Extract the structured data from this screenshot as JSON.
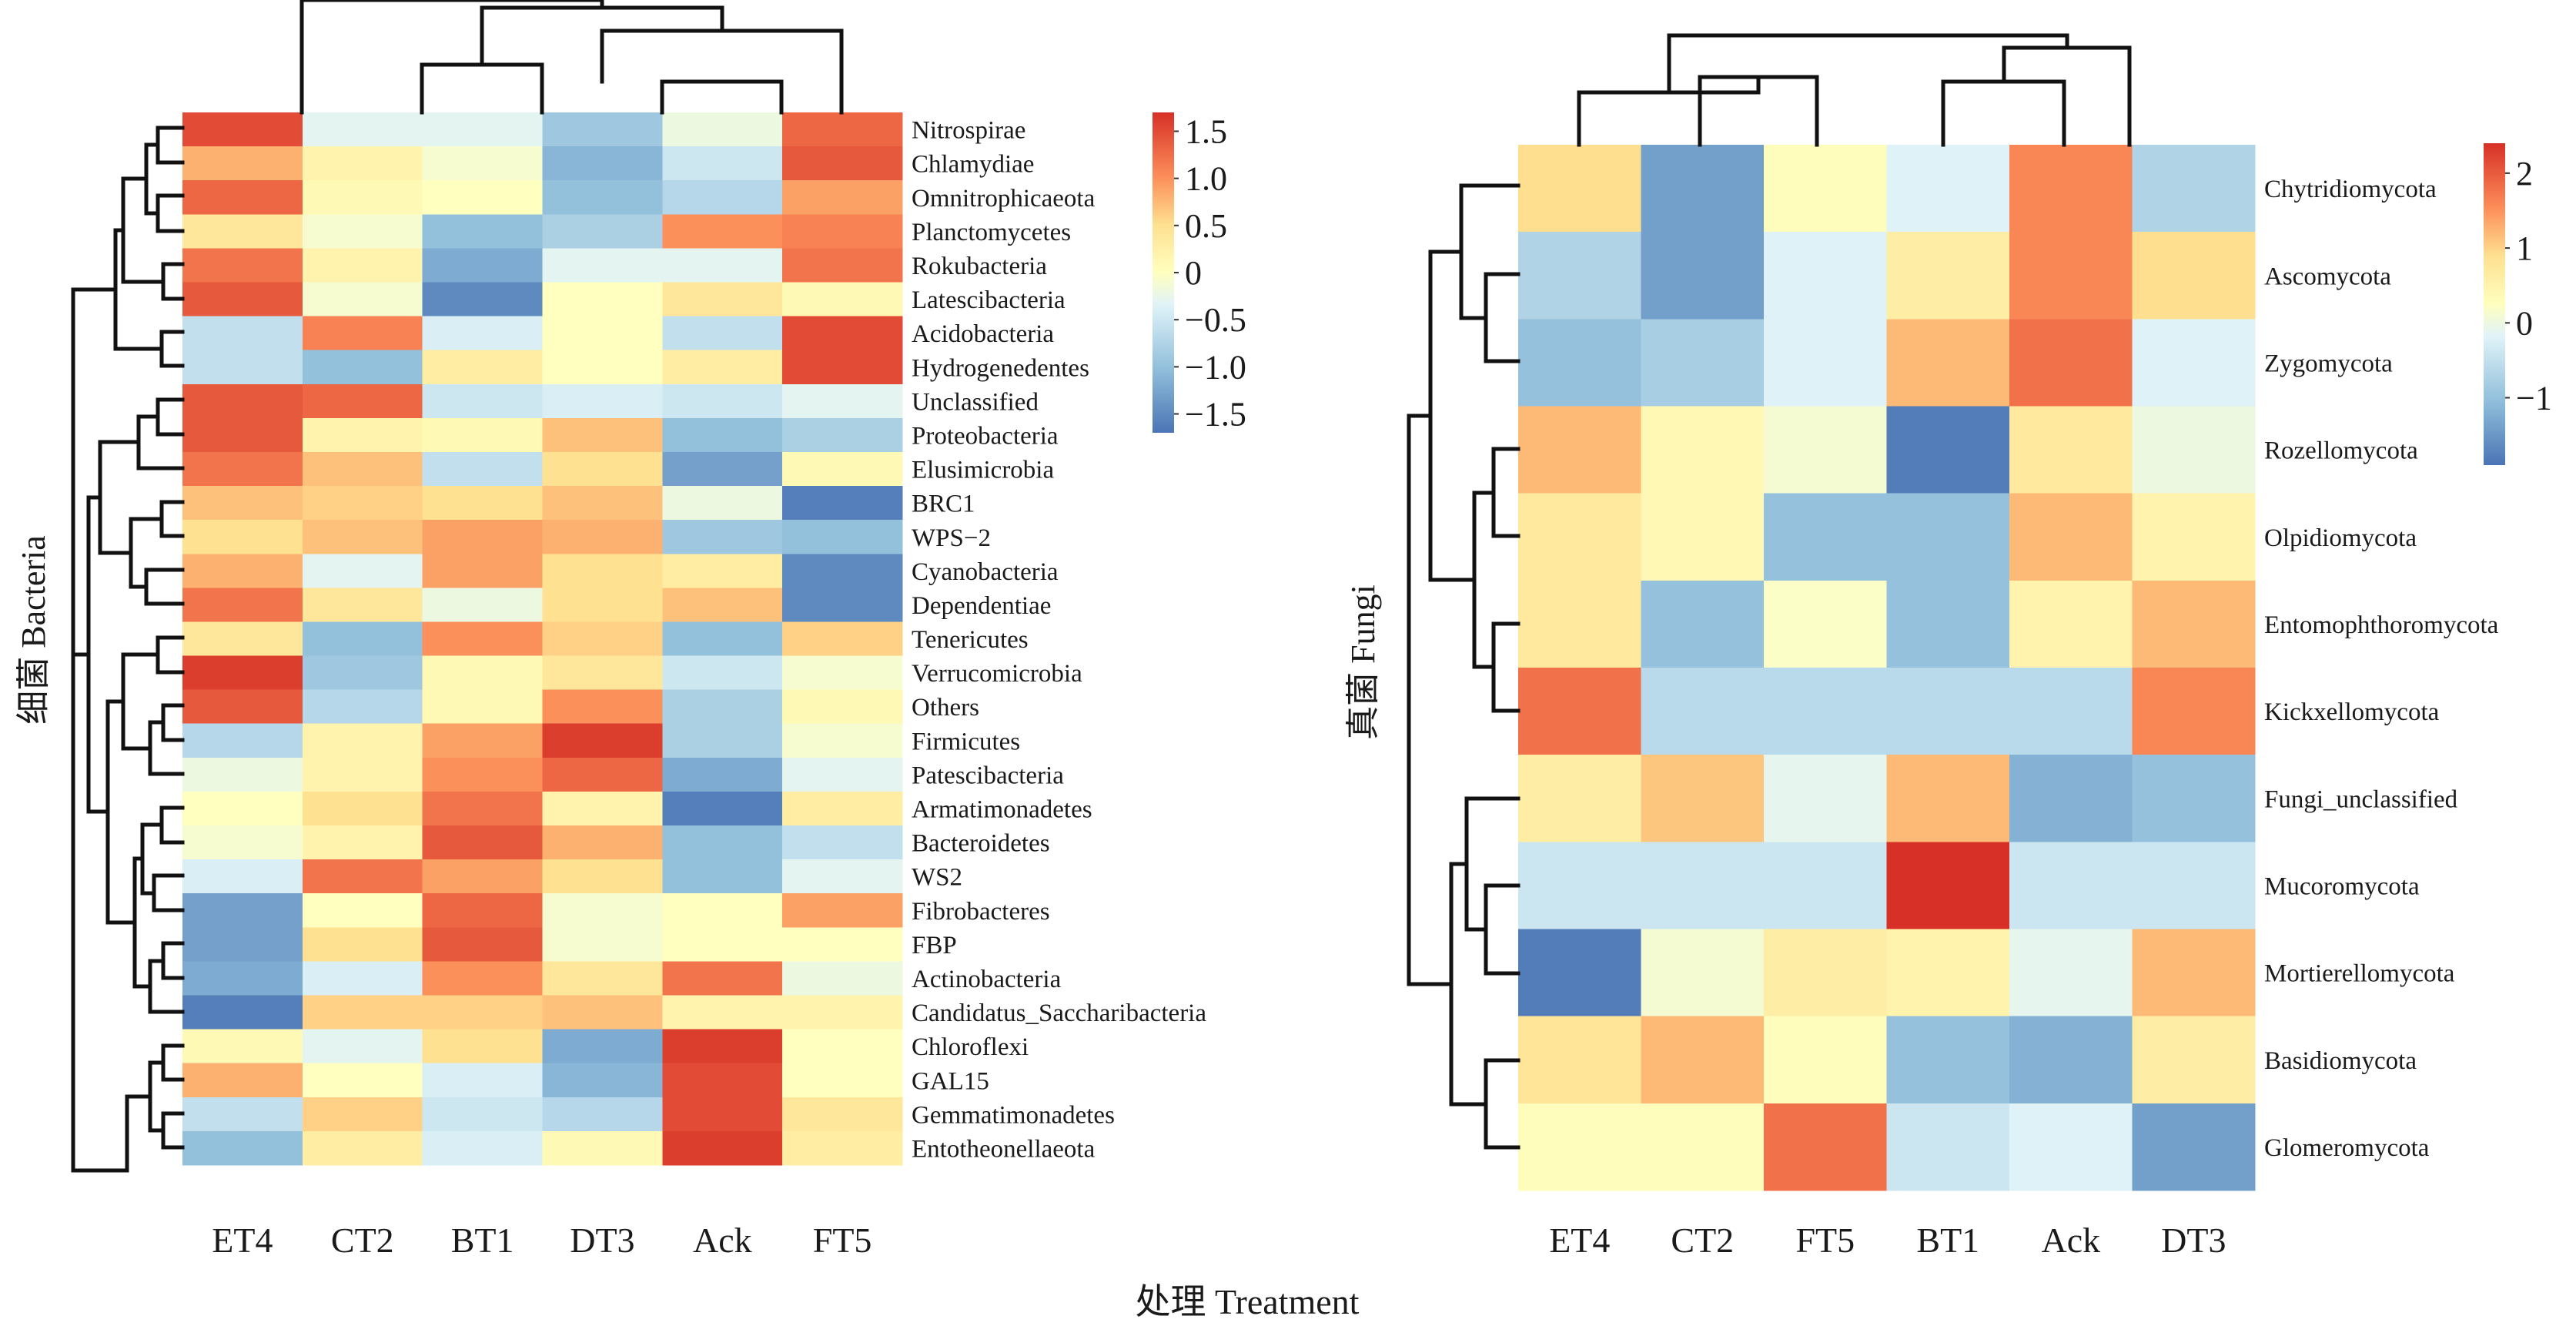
{
  "figure": {
    "shared_xlabel": "处理 Treatment"
  },
  "chart_data": [
    {
      "type": "heatmap",
      "ylabel": "细菌 Bacteria",
      "columns": [
        "ET4",
        "CT2",
        "BT1",
        "DT3",
        "Ack",
        "FT5"
      ],
      "rows": [
        "Nitrospirae",
        "Chlamydiae",
        "Omnitrophicaeota",
        "Planctomycetes",
        "Rokubacteria",
        "Latescibacteria",
        "Acidobacteria",
        "Hydrogenedentes",
        "Unclassified",
        "Proteobacteria",
        "Elusimicrobia",
        "BRC1",
        "WPS−2",
        "Cyanobacteria",
        "Dependentiae",
        "Tenericutes",
        "Verrucomicrobia",
        "Others",
        "Firmicutes",
        "Patescibacteria",
        "Armatimonadetes",
        "Bacteroidetes",
        "WS2",
        "Fibrobacteres",
        "FBP",
        "Actinobacteria",
        "Candidatus_Saccharibacteria",
        "Chloroflexi",
        "GAL15",
        "Gemmatimonadetes",
        "Entotheonellaeota"
      ],
      "values": [
        [
          1.5,
          -0.3,
          -0.3,
          -0.9,
          -0.2,
          1.3
        ],
        [
          0.8,
          0.2,
          -0.1,
          -1.1,
          -0.5,
          1.4
        ],
        [
          1.3,
          0.1,
          0.0,
          -1.0,
          -0.7,
          0.9
        ],
        [
          0.4,
          -0.1,
          -1.0,
          -0.8,
          1.0,
          1.1
        ],
        [
          1.2,
          0.2,
          -1.2,
          -0.3,
          -0.3,
          1.2
        ],
        [
          1.4,
          -0.1,
          -1.5,
          0.0,
          0.4,
          0.1
        ],
        [
          -0.6,
          1.1,
          -0.4,
          0.0,
          -0.6,
          1.5
        ],
        [
          -0.6,
          -1.0,
          0.3,
          0.0,
          0.3,
          1.5
        ],
        [
          1.4,
          1.3,
          -0.5,
          -0.4,
          -0.5,
          -0.3
        ],
        [
          1.4,
          0.2,
          0.1,
          0.7,
          -1.0,
          -0.8
        ],
        [
          1.2,
          0.7,
          -0.6,
          0.5,
          -1.3,
          0.1
        ],
        [
          0.7,
          0.6,
          0.5,
          0.7,
          -0.2,
          -1.6
        ],
        [
          0.5,
          0.7,
          0.9,
          0.8,
          -0.9,
          -1.0
        ],
        [
          0.8,
          -0.3,
          0.9,
          0.5,
          0.3,
          -1.5
        ],
        [
          1.2,
          0.4,
          -0.2,
          0.5,
          0.7,
          -1.5
        ],
        [
          0.4,
          -1.0,
          1.0,
          0.6,
          -1.0,
          0.6
        ],
        [
          1.6,
          -0.9,
          0.1,
          0.4,
          -0.5,
          -0.1
        ],
        [
          1.4,
          -0.7,
          0.1,
          1.0,
          -0.8,
          0.1
        ],
        [
          -0.7,
          0.2,
          0.9,
          1.6,
          -0.8,
          -0.1
        ],
        [
          -0.2,
          0.2,
          1.0,
          1.3,
          -1.2,
          -0.3
        ],
        [
          0.0,
          0.5,
          1.2,
          0.2,
          -1.6,
          0.3
        ],
        [
          -0.1,
          0.2,
          1.4,
          0.8,
          -1.0,
          -0.6
        ],
        [
          -0.4,
          1.2,
          0.9,
          0.5,
          -1.0,
          -0.3
        ],
        [
          -1.3,
          0.0,
          1.3,
          -0.1,
          0.0,
          0.9
        ],
        [
          -1.3,
          0.5,
          1.4,
          -0.1,
          0.0,
          0.0
        ],
        [
          -1.2,
          -0.4,
          1.0,
          0.4,
          1.2,
          -0.2
        ],
        [
          -1.6,
          0.6,
          0.6,
          0.7,
          0.2,
          0.2
        ],
        [
          0.1,
          -0.3,
          0.5,
          -1.2,
          1.6,
          0.0
        ],
        [
          0.8,
          0.0,
          -0.4,
          -1.1,
          1.5,
          0.0
        ],
        [
          -0.6,
          0.6,
          -0.5,
          -0.7,
          1.5,
          0.4
        ],
        [
          -1.0,
          0.3,
          -0.4,
          0.1,
          1.6,
          0.3
        ]
      ],
      "colorbar": {
        "ticks": [
          1.5,
          1.0,
          0.5,
          0,
          -0.5,
          -1.0,
          -1.5
        ],
        "tick_labels": [
          "1.5",
          "1.0",
          "0.5",
          "0",
          "−0.5",
          "−1.0",
          "−1.5"
        ],
        "range": [
          -1.7,
          1.7
        ]
      },
      "legend_position": "right",
      "grid": false
    },
    {
      "type": "heatmap",
      "ylabel": "真菌 Fungi",
      "columns": [
        "ET4",
        "CT2",
        "FT5",
        "BT1",
        "Ack",
        "DT3"
      ],
      "rows": [
        "Chytridiomycota",
        "Ascomycota",
        "Zygomycota",
        "Rozellomycota",
        "Olpidiomycota",
        "Entomophthoromycota",
        "Kickxellomycota",
        "Fungi_unclassified",
        "Mucoromycota",
        "Mortierellomycota",
        "Basidiomycota",
        "Glomeromycota"
      ],
      "values": [
        [
          0.9,
          -1.4,
          0.3,
          -0.2,
          1.6,
          -0.7
        ],
        [
          -0.7,
          -1.4,
          -0.2,
          0.6,
          1.6,
          0.9
        ],
        [
          -1.0,
          -0.8,
          -0.2,
          1.2,
          1.8,
          -0.2
        ],
        [
          1.2,
          0.4,
          0.1,
          -1.8,
          0.7,
          0.0
        ],
        [
          0.7,
          0.4,
          -1.0,
          -1.0,
          1.2,
          0.5
        ],
        [
          0.7,
          -1.0,
          0.2,
          -1.0,
          0.5,
          1.2
        ],
        [
          1.8,
          -0.6,
          -0.6,
          -0.6,
          -0.6,
          1.6
        ],
        [
          0.6,
          1.1,
          -0.1,
          1.2,
          -1.2,
          -1.0
        ],
        [
          -0.4,
          -0.4,
          -0.4,
          2.4,
          -0.4,
          -0.4
        ],
        [
          -1.8,
          0.1,
          0.6,
          0.5,
          -0.1,
          1.2
        ],
        [
          0.8,
          1.2,
          0.3,
          -1.0,
          -1.2,
          0.6
        ],
        [
          0.3,
          0.3,
          1.8,
          -0.4,
          -0.2,
          -1.4
        ]
      ],
      "colorbar": {
        "ticks": [
          2,
          1,
          0,
          -1
        ],
        "tick_labels": [
          "2",
          "1",
          "0",
          "−1"
        ],
        "range": [
          -1.9,
          2.4
        ]
      },
      "legend_position": "right",
      "grid": false
    }
  ]
}
